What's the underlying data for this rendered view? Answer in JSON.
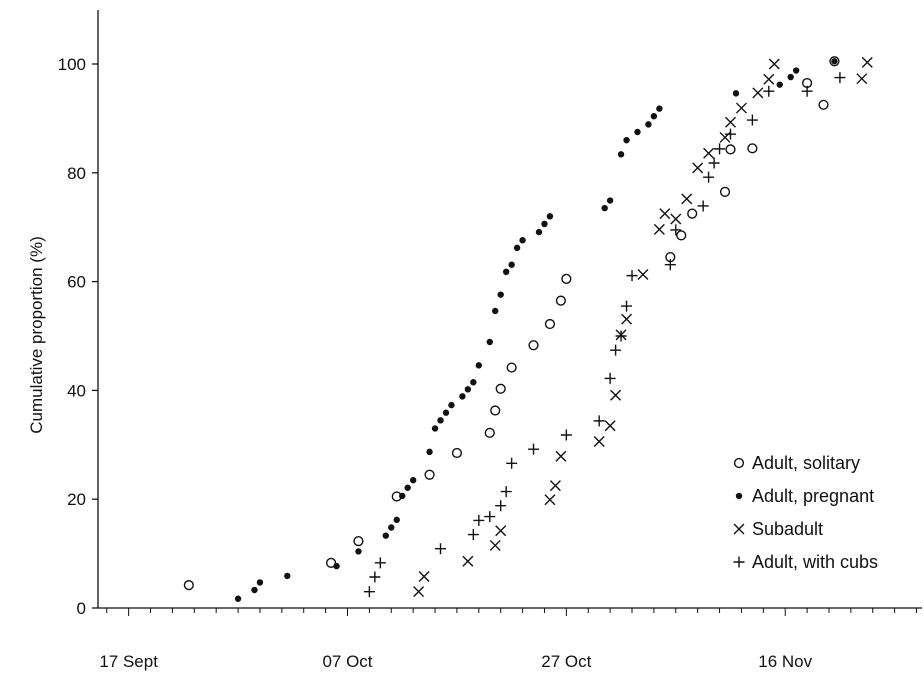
{
  "chart_data": {
    "type": "scatter",
    "title": "",
    "xlabel": "",
    "ylabel": "Cumulative proportion (%)",
    "x_units": "days from 17 Sept",
    "xlim": [
      -2.8,
      72.5
    ],
    "ylim": [
      0,
      110
    ],
    "x_ticks": [
      {
        "value": 0,
        "label": "17 Sept"
      },
      {
        "value": 20,
        "label": "07 Oct"
      },
      {
        "value": 40,
        "label": "27 Oct"
      },
      {
        "value": 60,
        "label": "16 Nov"
      }
    ],
    "y_ticks": [
      0,
      20,
      40,
      60,
      80,
      100
    ],
    "grid": false,
    "legend_position": "bottom-right",
    "series": [
      {
        "name": "Adult, solitary",
        "marker": "open-circle",
        "x": [
          5.5,
          18.5,
          21.0,
          24.5,
          27.5,
          30.0,
          33.0,
          33.5,
          34.0,
          35.0,
          37.0,
          38.5,
          39.5,
          40.0,
          49.5,
          50.5,
          51.5,
          54.5,
          55.0,
          57.0,
          63.5,
          62.0,
          64.5
        ],
        "y": [
          4.2,
          8.3,
          12.3,
          20.5,
          24.5,
          28.5,
          32.2,
          36.3,
          40.3,
          44.2,
          48.3,
          52.2,
          56.5,
          60.5,
          64.5,
          68.5,
          72.5,
          76.5,
          84.3,
          84.5,
          92.5,
          96.5,
          100.5
        ]
      },
      {
        "name": "Adult, pregnant",
        "marker": "filled-circle",
        "x": [
          10.0,
          11.5,
          12.0,
          14.5,
          19.0,
          21.0,
          23.5,
          24.0,
          24.5,
          25.0,
          25.5,
          26.0,
          27.5,
          28.0,
          28.5,
          29.0,
          29.5,
          30.5,
          31.0,
          31.5,
          32.0,
          33.0,
          33.5,
          34.0,
          34.5,
          35.0,
          35.5,
          36.0,
          37.5,
          38.0,
          38.5,
          43.5,
          44.0,
          45.0,
          45.5,
          46.5,
          47.5,
          48.0,
          48.5,
          55.5,
          59.5,
          60.5,
          61.0,
          64.5
        ],
        "y": [
          1.7,
          3.3,
          4.7,
          5.9,
          7.7,
          10.4,
          13.3,
          14.8,
          16.2,
          20.6,
          22.1,
          23.5,
          28.7,
          33.0,
          34.5,
          35.9,
          37.3,
          38.9,
          40.2,
          41.5,
          44.6,
          48.9,
          54.6,
          57.6,
          61.8,
          63.1,
          66.2,
          67.6,
          69.1,
          70.6,
          72.0,
          73.5,
          74.9,
          83.4,
          86.0,
          87.5,
          88.9,
          90.4,
          91.8,
          94.6,
          96.2,
          97.6,
          98.8,
          100.5
        ]
      },
      {
        "name": "Subadult",
        "marker": "x",
        "x": [
          26.5,
          27.0,
          31.0,
          33.5,
          34.0,
          38.5,
          39.0,
          39.5,
          43.0,
          44.0,
          44.5,
          45.0,
          45.5,
          47.0,
          48.5,
          49.0,
          50.0,
          51.0,
          52.0,
          53.0,
          54.5,
          55.0,
          56.0,
          57.5,
          58.5,
          59.0,
          67.0,
          67.5
        ],
        "y": [
          3.0,
          5.8,
          8.6,
          11.5,
          14.2,
          19.9,
          22.5,
          27.9,
          30.6,
          33.5,
          39.1,
          50.2,
          53.1,
          61.3,
          69.6,
          72.5,
          71.5,
          75.2,
          80.9,
          83.6,
          86.5,
          89.3,
          91.9,
          94.7,
          97.2,
          100.0,
          97.3,
          100.3
        ]
      },
      {
        "name": "Adult, with cubs",
        "marker": "plus",
        "x": [
          22.0,
          22.5,
          23.0,
          28.5,
          31.5,
          32.0,
          33.0,
          34.0,
          34.5,
          35.0,
          37.0,
          40.0,
          43.0,
          44.0,
          44.5,
          45.0,
          45.5,
          46.0,
          49.5,
          50.0,
          52.5,
          53.0,
          53.5,
          54.0,
          55.0,
          57.0,
          58.5,
          62.0,
          65.0
        ],
        "y": [
          3.0,
          5.7,
          8.3,
          10.9,
          13.5,
          16.1,
          16.8,
          18.8,
          21.4,
          26.6,
          29.2,
          31.8,
          34.4,
          42.2,
          47.4,
          50.0,
          55.5,
          61.1,
          63.1,
          69.5,
          73.9,
          79.2,
          81.8,
          84.4,
          87.1,
          89.7,
          95.0,
          95.0,
          97.5
        ]
      }
    ]
  }
}
